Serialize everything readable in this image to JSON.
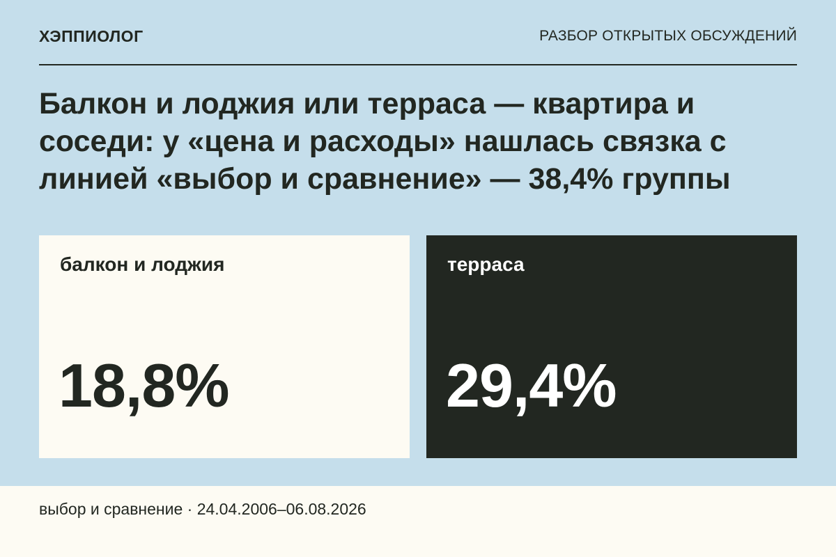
{
  "header": {
    "brand": "ХЭППИОЛОГ",
    "section": "РАЗБОР ОТКРЫТЫХ ОБСУЖДЕНИЙ"
  },
  "headline": "Балкон и лоджия или терраса — квартира и соседи: у «цена и расходы» нашлась связка с линией «выбор и сравнение» — 38,4% группы",
  "cards": [
    {
      "label": "балкон и лоджия",
      "value": "18,8%"
    },
    {
      "label": "терраса",
      "value": "29,4%"
    }
  ],
  "footer": {
    "text": "выбор и сравнение · 24.04.2006–06.08.2026"
  },
  "colors": {
    "background": "#c5deeb",
    "ink": "#222721",
    "cream": "#fdfbf3",
    "dark_card": "#222721"
  }
}
